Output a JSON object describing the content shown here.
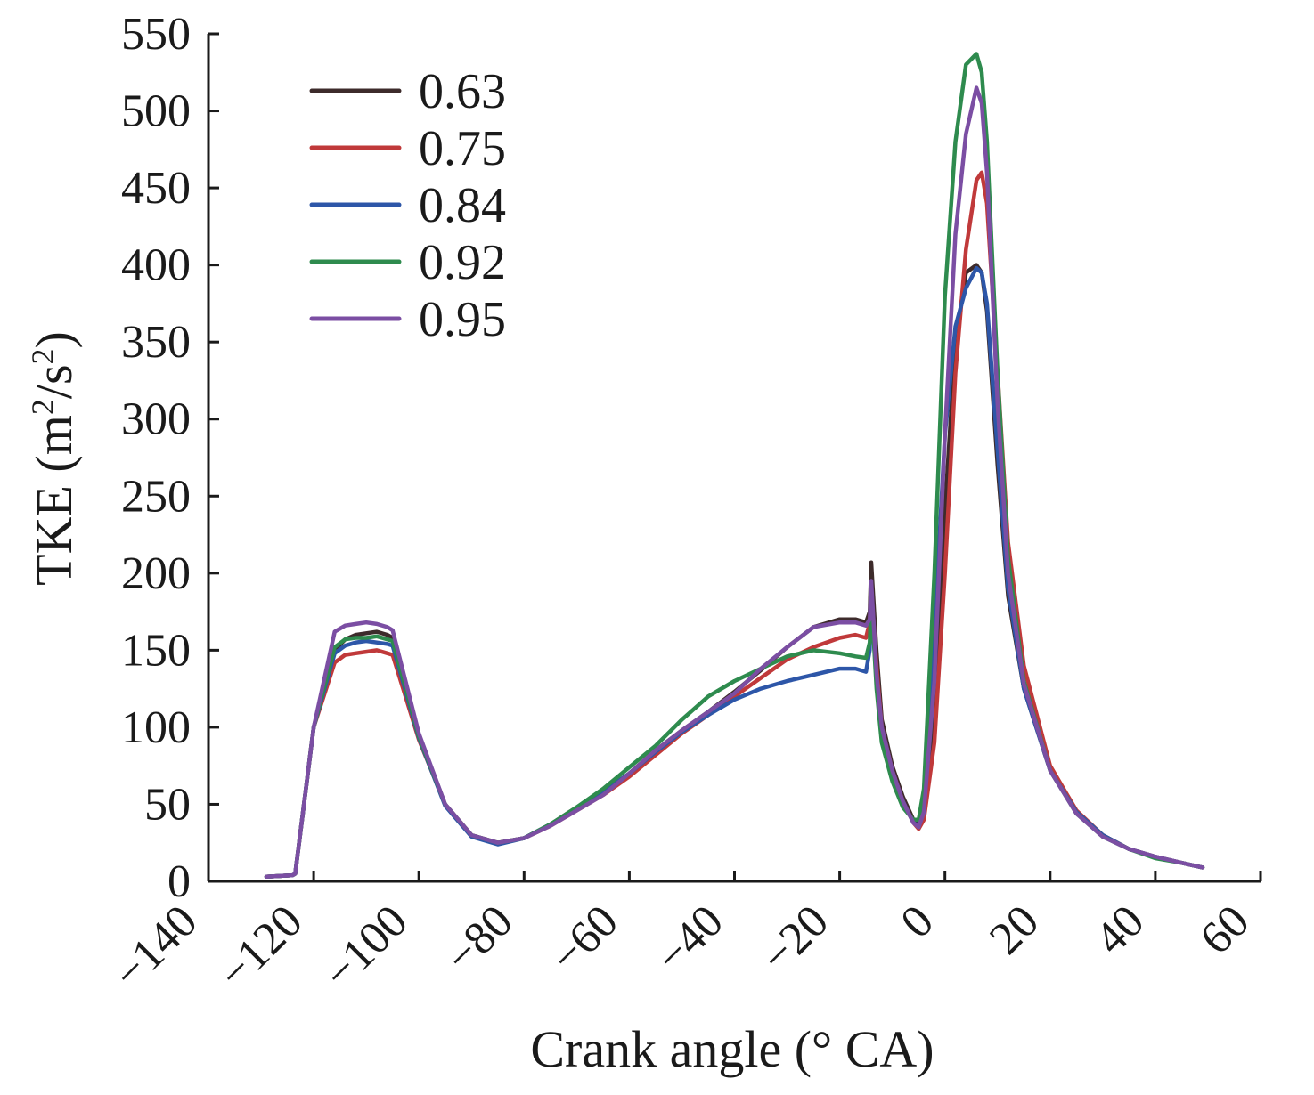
{
  "chart_data": {
    "type": "line",
    "xlabel": "Crank angle (° CA)",
    "ylabel": {
      "prefix": "TKE (m",
      "sup1": "2",
      "mid": "/s",
      "sup2": "2",
      "suffix": ")"
    },
    "xlim": [
      -140,
      60
    ],
    "ylim": [
      0,
      550
    ],
    "xticks": [
      -140,
      -120,
      -100,
      -80,
      -60,
      -40,
      -20,
      0,
      20,
      40,
      60
    ],
    "xtick_labels": [
      "−140",
      "−120",
      "−100",
      "−80",
      "−60",
      "−40",
      "−20",
      "0",
      "20",
      "40",
      "60"
    ],
    "yticks": [
      0,
      50,
      100,
      150,
      200,
      250,
      300,
      350,
      400,
      450,
      500,
      550
    ],
    "ytick_labels": [
      "0",
      "50",
      "100",
      "150",
      "200",
      "250",
      "300",
      "350",
      "400",
      "450",
      "500",
      "550"
    ],
    "grid": false,
    "legend_position": "top-left",
    "series": [
      {
        "name": "0.63",
        "color": "#3d2b2b",
        "x": [
          -129,
          -124,
          -123.5,
          -120,
          -116,
          -114,
          -112,
          -110,
          -108,
          -106,
          -105,
          -100,
          -95,
          -90,
          -85,
          -80,
          -75,
          -70,
          -65,
          -60,
          -55,
          -50,
          -45,
          -40,
          -35,
          -30,
          -25,
          -20,
          -17,
          -15,
          -14.3,
          -14,
          -13,
          -12,
          -10,
          -8,
          -6,
          -5,
          -4,
          -2,
          0,
          2,
          4,
          6,
          7,
          8,
          10,
          12,
          15,
          20,
          25,
          30,
          35,
          40,
          45,
          49
        ],
        "y": [
          3,
          4,
          5,
          100,
          150,
          157,
          160,
          161,
          162,
          160,
          158,
          95,
          50,
          30,
          25,
          28,
          37,
          48,
          58,
          70,
          85,
          98,
          110,
          123,
          137,
          152,
          165,
          170,
          170,
          168,
          175,
          207,
          150,
          105,
          75,
          55,
          40,
          37,
          45,
          110,
          240,
          350,
          395,
          400,
          395,
          370,
          270,
          185,
          125,
          72,
          45,
          30,
          21,
          16,
          12,
          9
        ]
      },
      {
        "name": "0.75",
        "color": "#c0393a",
        "x": [
          -129,
          -124,
          -123.5,
          -120,
          -116,
          -114,
          -112,
          -110,
          -108,
          -106,
          -105,
          -100,
          -95,
          -90,
          -85,
          -80,
          -75,
          -70,
          -65,
          -60,
          -55,
          -50,
          -45,
          -40,
          -35,
          -30,
          -25,
          -20,
          -17,
          -15,
          -14.3,
          -14,
          -13,
          -12,
          -10,
          -8,
          -6,
          -5,
          -4,
          -2,
          0,
          2,
          4,
          6,
          7,
          8,
          10,
          12,
          15,
          20,
          25,
          30,
          35,
          40,
          45,
          49
        ],
        "y": [
          3,
          4,
          5,
          100,
          142,
          147,
          148,
          149,
          150,
          148,
          147,
          92,
          50,
          30,
          25,
          28,
          36,
          46,
          56,
          68,
          82,
          96,
          108,
          120,
          132,
          144,
          152,
          158,
          160,
          158,
          168,
          190,
          140,
          100,
          72,
          52,
          38,
          34,
          40,
          90,
          200,
          330,
          410,
          455,
          460,
          440,
          330,
          220,
          140,
          75,
          46,
          30,
          21,
          16,
          12,
          9
        ]
      },
      {
        "name": "0.84",
        "color": "#2d56a8",
        "x": [
          -129,
          -124,
          -123.5,
          -120,
          -116,
          -114,
          -112,
          -110,
          -108,
          -106,
          -105,
          -100,
          -95,
          -90,
          -85,
          -80,
          -75,
          -70,
          -65,
          -60,
          -55,
          -50,
          -45,
          -40,
          -35,
          -30,
          -25,
          -20,
          -17,
          -15,
          -14.3,
          -14,
          -13,
          -12,
          -10,
          -8,
          -6,
          -5,
          -4,
          -2,
          0,
          2,
          4,
          6,
          7,
          8,
          10,
          12,
          15,
          20,
          25,
          30,
          35,
          40,
          45,
          49
        ],
        "y": [
          3,
          4,
          5,
          100,
          148,
          153,
          155,
          156,
          155,
          154,
          153,
          93,
          49,
          29,
          24,
          28,
          37,
          47,
          58,
          70,
          84,
          97,
          108,
          118,
          125,
          130,
          134,
          138,
          138,
          136,
          150,
          180,
          132,
          95,
          70,
          52,
          38,
          36,
          55,
          160,
          290,
          360,
          385,
          398,
          395,
          375,
          280,
          190,
          125,
          72,
          45,
          30,
          21,
          16,
          12,
          9
        ]
      },
      {
        "name": "0.92",
        "color": "#2e8b4e",
        "x": [
          -129,
          -124,
          -123.5,
          -120,
          -116,
          -114,
          -112,
          -110,
          -108,
          -106,
          -105,
          -100,
          -95,
          -90,
          -85,
          -80,
          -75,
          -70,
          -65,
          -60,
          -55,
          -50,
          -45,
          -40,
          -35,
          -30,
          -25,
          -20,
          -17,
          -15,
          -14.3,
          -14,
          -13,
          -12,
          -10,
          -8,
          -6,
          -5,
          -4,
          -2,
          0,
          2,
          4,
          6,
          7,
          8,
          10,
          12,
          15,
          20,
          25,
          30,
          35,
          40,
          45,
          49
        ],
        "y": [
          3,
          4,
          5,
          100,
          152,
          157,
          158,
          158,
          159,
          157,
          156,
          94,
          50,
          30,
          25,
          28,
          37,
          48,
          60,
          74,
          88,
          105,
          120,
          130,
          138,
          146,
          150,
          148,
          146,
          145,
          155,
          185,
          125,
          90,
          65,
          48,
          40,
          40,
          60,
          200,
          380,
          480,
          530,
          537,
          525,
          480,
          330,
          210,
          130,
          72,
          44,
          29,
          21,
          15,
          12,
          9
        ]
      },
      {
        "name": "0.95",
        "color": "#7b4ea3",
        "x": [
          -129,
          -124,
          -123.5,
          -120,
          -116,
          -114,
          -112,
          -110,
          -108,
          -106,
          -105,
          -100,
          -95,
          -90,
          -85,
          -80,
          -75,
          -70,
          -65,
          -60,
          -55,
          -50,
          -45,
          -40,
          -35,
          -30,
          -25,
          -20,
          -17,
          -15,
          -14.3,
          -14,
          -13,
          -12,
          -10,
          -8,
          -6,
          -5,
          -4,
          -2,
          0,
          2,
          4,
          6,
          7,
          8,
          10,
          12,
          15,
          20,
          25,
          30,
          35,
          40,
          45,
          49
        ],
        "y": [
          3,
          4,
          5,
          100,
          162,
          166,
          167,
          168,
          167,
          165,
          163,
          96,
          50,
          30,
          25,
          28,
          36,
          46,
          56,
          70,
          85,
          98,
          110,
          122,
          138,
          152,
          165,
          168,
          168,
          166,
          170,
          195,
          135,
          100,
          72,
          52,
          38,
          35,
          45,
          130,
          290,
          420,
          485,
          515,
          505,
          460,
          310,
          200,
          128,
          72,
          44,
          29,
          21,
          16,
          12,
          9
        ]
      }
    ]
  }
}
